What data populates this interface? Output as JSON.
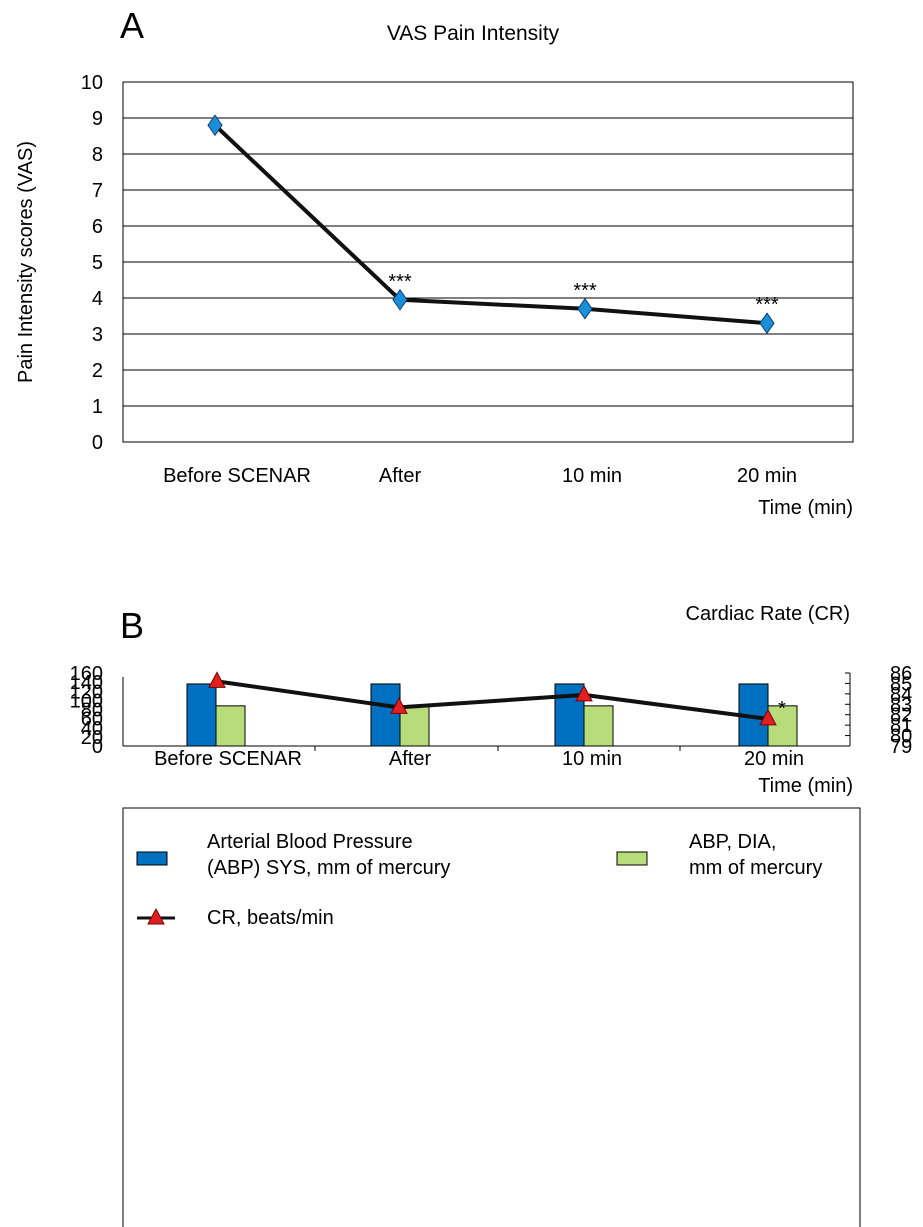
{
  "chart_data": [
    {
      "panel": "A",
      "type": "line",
      "title": "VAS Pain Intensity",
      "ylabel": "Pain Intensity scores (VAS)",
      "xlabel": "Time (min)",
      "categories": [
        "Before SCENAR",
        "After",
        "10 min",
        "20 min"
      ],
      "ylim": [
        0,
        10
      ],
      "yticks": [
        0,
        1,
        2,
        3,
        4,
        5,
        6,
        7,
        8,
        9,
        10
      ],
      "grid": true,
      "series": [
        {
          "values": [
            8.8,
            3.95,
            3.7,
            3.3
          ],
          "color": "#1a8fd8",
          "marker": "diamond"
        }
      ],
      "annotations": [
        "",
        "***",
        "***",
        "***"
      ]
    },
    {
      "panel": "B",
      "type": "bar",
      "title": "",
      "right_axis_title": "Cardiac Rate (CR)",
      "xlabel": "Time (min)",
      "categories": [
        "Before SCENAR",
        "After",
        "10 min",
        "20 min"
      ],
      "ylim": [
        0,
        160
      ],
      "yticks": [
        0,
        20,
        40,
        60,
        80,
        100,
        120,
        140,
        160
      ],
      "y2lim": [
        79,
        86
      ],
      "y2ticks": [
        79,
        80,
        81,
        82,
        83,
        84,
        85,
        86
      ],
      "grid": false,
      "series": [
        {
          "name": "Arterial Blood Pressure (ABP) SYS, mm of mercury",
          "type": "bar",
          "axis": "left",
          "values": [
            136,
            136,
            136,
            136
          ],
          "color": "#0070c0"
        },
        {
          "name": "ABP, DIA, mm of mercury",
          "type": "bar",
          "axis": "left",
          "values": [
            88,
            88,
            88,
            88
          ],
          "color": "#b8dc7a"
        },
        {
          "name": "CR, beats/min",
          "type": "line",
          "axis": "right",
          "values": [
            85.2,
            82.7,
            83.9,
            81.6
          ],
          "color": "#e02020",
          "marker": "triangle"
        }
      ],
      "annotations": [
        "",
        "",
        "",
        "*"
      ],
      "legend": {
        "placement": "bottom",
        "items": [
          {
            "lines": [
              "Arterial Blood Pressure",
              "(ABP) SYS, mm of mercury"
            ],
            "swatch": "bar",
            "color": "#0070c0"
          },
          {
            "lines": [
              "ABP, DIA,",
              "mm of mercury"
            ],
            "swatch": "bar",
            "color": "#b8dc7a"
          },
          {
            "lines": [
              "CR, beats/min"
            ],
            "swatch": "line-triangle",
            "color": "#e02020"
          }
        ]
      }
    }
  ]
}
